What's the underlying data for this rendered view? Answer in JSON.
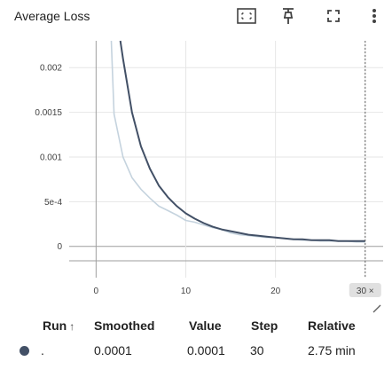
{
  "header": {
    "title": "Average Loss",
    "icons": [
      "fit-domain-icon",
      "pin-icon",
      "fullscreen-icon",
      "more-vert-icon"
    ]
  },
  "chart_data": {
    "type": "line",
    "title": "Average Loss",
    "xlabel": "",
    "ylabel": "",
    "xlim": [
      -3,
      32
    ],
    "ylim": [
      -0.00035,
      0.0023
    ],
    "x_ticks": [
      0,
      10,
      20,
      30
    ],
    "x_tick_labels": [
      "0",
      "10",
      "20",
      "30"
    ],
    "y_ticks": [
      0,
      0.0005,
      0.001,
      0.0015,
      0.002
    ],
    "y_tick_labels": [
      "0",
      "5e-4",
      "0.001",
      "0.0015",
      "0.002"
    ],
    "grid": true,
    "hover_step": 30,
    "hover_label": "30 ×",
    "series": [
      {
        "role": "raw",
        "color": "#c5d3de",
        "x": [
          1.7,
          2,
          3,
          4,
          5,
          6,
          7,
          8,
          9,
          10,
          11,
          12,
          13,
          14,
          15,
          16,
          17,
          18,
          19,
          20,
          21,
          22,
          23,
          24,
          25,
          26,
          27,
          28,
          29,
          30
        ],
        "y": [
          0.0023,
          0.00148,
          0.001,
          0.00077,
          0.00064,
          0.00054,
          0.00045,
          0.0004,
          0.00035,
          0.00029,
          0.00027,
          0.00024,
          0.00021,
          0.00019,
          0.00015,
          0.00013,
          0.00012,
          0.00011,
          0.0001,
          0.0001,
          9e-05,
          8e-05,
          7e-05,
          7e-05,
          6e-05,
          6e-05,
          6e-05,
          6e-05,
          5e-05,
          5e-05
        ]
      },
      {
        "role": "smoothed",
        "color": "#425066",
        "x": [
          2.7,
          3,
          4,
          5,
          6,
          7,
          8,
          9,
          10,
          11,
          12,
          13,
          14,
          15,
          16,
          17,
          18,
          19,
          20,
          21,
          22,
          23,
          24,
          25,
          26,
          27,
          28,
          29,
          30
        ],
        "y": [
          0.0023,
          0.0021,
          0.0015,
          0.00112,
          0.00087,
          0.00068,
          0.00055,
          0.00045,
          0.00037,
          0.00031,
          0.00026,
          0.00022,
          0.00019,
          0.00017,
          0.00015,
          0.00013,
          0.00012,
          0.00011,
          0.0001,
          9e-05,
          8e-05,
          8e-05,
          7e-05,
          7e-05,
          7e-05,
          6e-05,
          6e-05,
          6e-05,
          6e-05
        ]
      }
    ]
  },
  "table": {
    "headers": {
      "run": "Run",
      "run_sort": "↑",
      "smoothed": "Smoothed",
      "value": "Value",
      "step": "Step",
      "relative": "Relative"
    },
    "rows": [
      {
        "run_color": "#425066",
        "run": ".",
        "smoothed": "0.0001",
        "value": "0.0001",
        "step": "30",
        "relative": "2.75 min"
      }
    ]
  }
}
